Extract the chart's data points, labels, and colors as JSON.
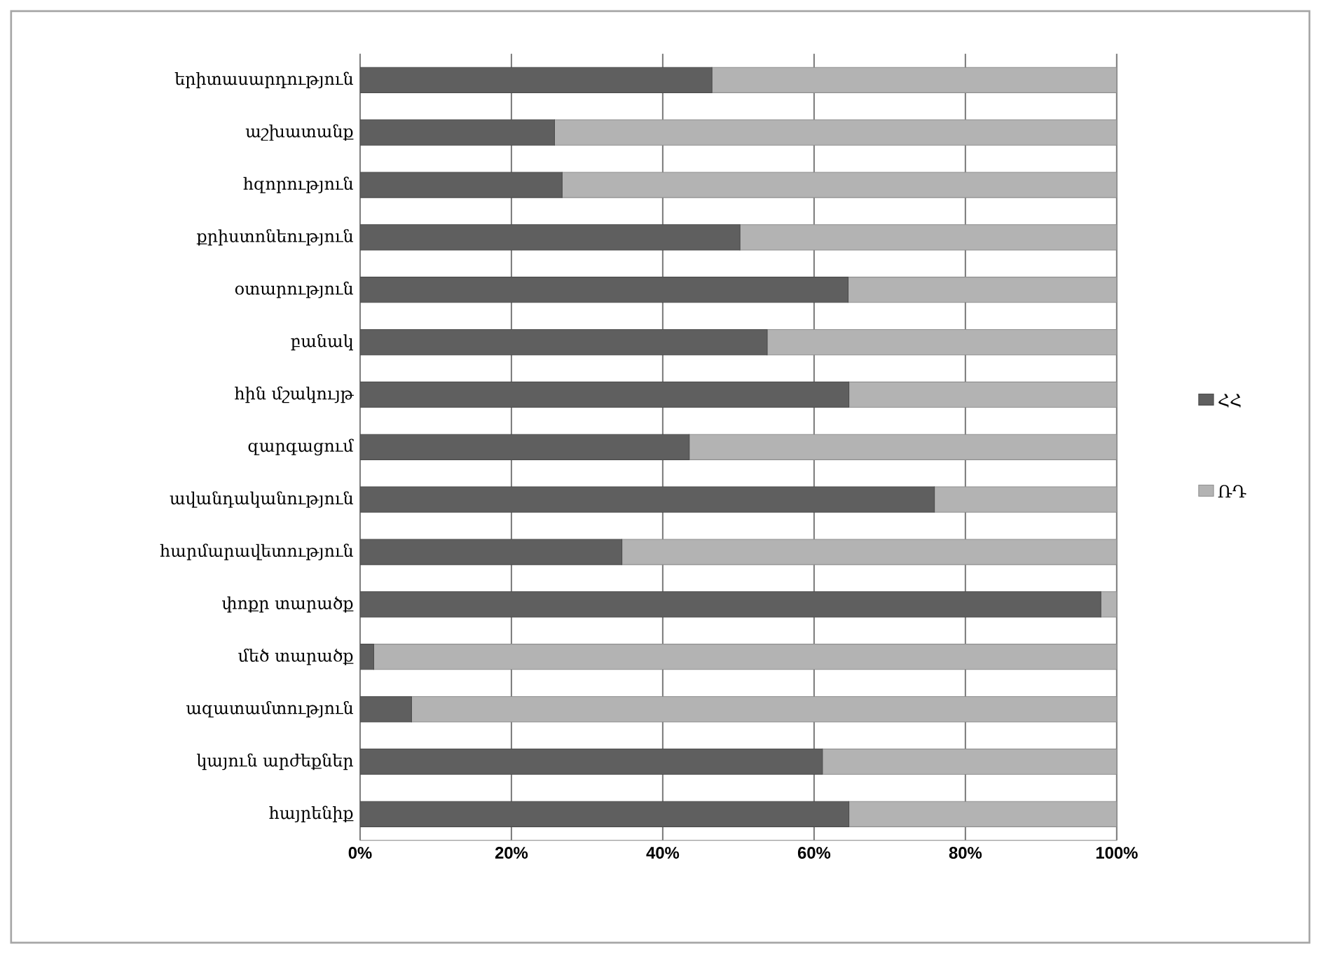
{
  "chart_data": {
    "type": "bar",
    "orientation": "horizontal",
    "stacked": true,
    "categories": [
      "երիտասարդություն",
      "աշխատանք",
      "հզորություն",
      "քրիստոնեություն",
      "օտարություն",
      "բանակ",
      "հին մշակույթ",
      "զարգացում",
      "ավանդականություն",
      "հարմարավետություն",
      "փոքր տարածք",
      "մեծ տարածք",
      "ազատամտություն",
      "կայուն արժեքներ",
      "հայրենիք"
    ],
    "series": [
      {
        "name": "ՀՀ",
        "color": "#5f5f5f",
        "values": [
          46.5,
          25.7,
          26.7,
          50.2,
          64.5,
          53.8,
          64.6,
          43.5,
          75.9,
          34.6,
          97.9,
          1.8,
          6.8,
          61.1,
          64.6
        ]
      },
      {
        "name": "ՌԴ",
        "color": "#b3b3b3",
        "values": [
          53.5,
          74.3,
          73.3,
          49.8,
          35.5,
          46.2,
          35.4,
          56.5,
          24.1,
          65.4,
          2.1,
          98.2,
          93.2,
          38.9,
          35.4
        ]
      }
    ],
    "xlim": [
      0,
      100
    ],
    "xticks": [
      {
        "value": 0,
        "label": "0%"
      },
      {
        "value": 20,
        "label": "20%"
      },
      {
        "value": 40,
        "label": "40%"
      },
      {
        "value": 60,
        "label": "60%"
      },
      {
        "value": 80,
        "label": "80%"
      },
      {
        "value": 100,
        "label": "100%"
      }
    ],
    "grid": "x",
    "legend": "right"
  }
}
